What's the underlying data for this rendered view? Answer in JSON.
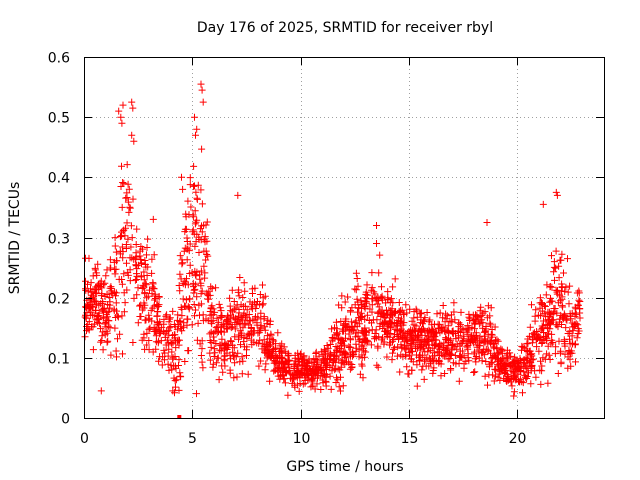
{
  "chart_data": {
    "type": "scatter",
    "title": "Day 176 of 2025, SRMTID for receiver rbyl",
    "xlabel": "GPS time / hours",
    "ylabel": "SRMTID / TECUs",
    "xlim": [
      0,
      24
    ],
    "ylim": [
      0,
      0.6
    ],
    "xticks": [
      "0",
      "5",
      "10",
      "15",
      "20"
    ],
    "yticks": [
      "0",
      "0.1",
      "0.2",
      "0.3",
      "0.4",
      "0.5",
      "0.6"
    ],
    "grid": true,
    "marker": "plus",
    "color": "#ff0000",
    "profile": {
      "x": [
        0,
        0.5,
        1.0,
        1.5,
        1.8,
        2.2,
        2.6,
        3.0,
        3.4,
        3.8,
        4.2,
        4.7,
        5.2,
        5.6,
        6.0,
        6.4,
        7.0,
        7.6,
        8.2,
        8.8,
        9.5,
        10.0,
        10.5,
        11.0,
        11.5,
        12.0,
        12.5,
        13.0,
        13.5,
        14.0,
        14.5,
        15.0,
        15.5,
        16.0,
        16.5,
        17.0,
        17.5,
        18.0,
        18.5,
        19.0,
        19.5,
        20.0,
        20.5,
        21.0,
        21.5,
        21.8,
        22.2,
        22.6,
        22.9
      ],
      "center": [
        0.19,
        0.2,
        0.17,
        0.2,
        0.3,
        0.3,
        0.22,
        0.2,
        0.17,
        0.12,
        0.11,
        0.24,
        0.28,
        0.23,
        0.14,
        0.13,
        0.15,
        0.15,
        0.15,
        0.1,
        0.08,
        0.08,
        0.08,
        0.08,
        0.1,
        0.13,
        0.14,
        0.16,
        0.17,
        0.17,
        0.15,
        0.13,
        0.13,
        0.12,
        0.13,
        0.13,
        0.13,
        0.14,
        0.14,
        0.1,
        0.08,
        0.08,
        0.1,
        0.14,
        0.16,
        0.2,
        0.16,
        0.15,
        0.17
      ],
      "spread": [
        0.05,
        0.06,
        0.06,
        0.1,
        0.15,
        0.12,
        0.08,
        0.08,
        0.07,
        0.06,
        0.06,
        0.14,
        0.17,
        0.12,
        0.05,
        0.05,
        0.07,
        0.07,
        0.06,
        0.03,
        0.025,
        0.025,
        0.025,
        0.03,
        0.04,
        0.06,
        0.07,
        0.07,
        0.07,
        0.06,
        0.05,
        0.05,
        0.05,
        0.05,
        0.05,
        0.05,
        0.05,
        0.06,
        0.06,
        0.04,
        0.03,
        0.03,
        0.04,
        0.06,
        0.08,
        0.1,
        0.07,
        0.06,
        0.05
      ]
    },
    "n_points": 2300,
    "x_range": [
      0,
      22.9
    ],
    "outliers": [
      {
        "x": 1.6,
        "y": 0.51
      },
      {
        "x": 1.7,
        "y": 0.5
      },
      {
        "x": 1.8,
        "y": 0.52
      },
      {
        "x": 1.75,
        "y": 0.49
      },
      {
        "x": 2.2,
        "y": 0.525
      },
      {
        "x": 2.25,
        "y": 0.515
      },
      {
        "x": 2.2,
        "y": 0.47
      },
      {
        "x": 2.3,
        "y": 0.46
      },
      {
        "x": 5.1,
        "y": 0.5
      },
      {
        "x": 5.2,
        "y": 0.48
      },
      {
        "x": 5.4,
        "y": 0.555
      },
      {
        "x": 5.45,
        "y": 0.545
      },
      {
        "x": 5.5,
        "y": 0.525
      },
      {
        "x": 4.5,
        "y": 0.4
      },
      {
        "x": 4.55,
        "y": 0.38
      },
      {
        "x": 7.1,
        "y": 0.37
      },
      {
        "x": 13.5,
        "y": 0.29
      },
      {
        "x": 13.5,
        "y": 0.32
      },
      {
        "x": 18.6,
        "y": 0.325
      },
      {
        "x": 21.2,
        "y": 0.355
      },
      {
        "x": 21.8,
        "y": 0.375
      },
      {
        "x": 21.85,
        "y": 0.37
      },
      {
        "x": 3.2,
        "y": 0.33
      },
      {
        "x": 0.8,
        "y": 0.045
      },
      {
        "x": 4.1,
        "y": 0.045
      }
    ],
    "zero_marker": {
      "x": 4.4,
      "y": 0.0
    }
  }
}
